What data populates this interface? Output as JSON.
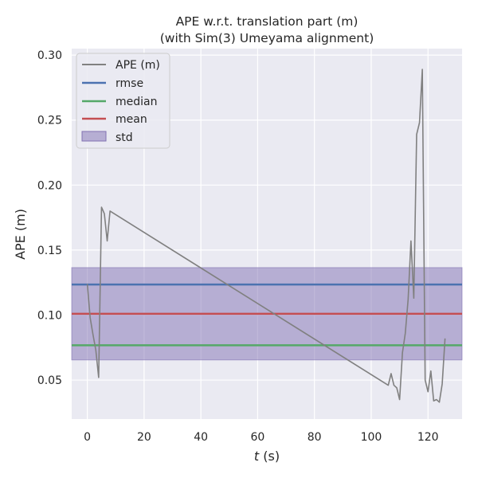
{
  "chart_data": {
    "type": "line",
    "title": "APE w.r.t. translation part (m)",
    "subtitle": "(with Sim(3) Umeyama alignment)",
    "xlabel_var": "t",
    "xlabel_unit": " (s)",
    "ylabel": "APE (m)",
    "xlim": [
      -5.5,
      132
    ],
    "ylim": [
      0.02,
      0.305
    ],
    "x_ticks": [
      0,
      20,
      40,
      60,
      80,
      100,
      120
    ],
    "y_ticks": [
      0.05,
      0.1,
      0.15,
      0.2,
      0.25,
      0.3
    ],
    "x_tick_labels": [
      "0",
      "20",
      "40",
      "60",
      "80",
      "100",
      "120"
    ],
    "y_tick_labels": [
      "0.05",
      "0.10",
      "0.15",
      "0.20",
      "0.25",
      "0.30"
    ],
    "grid": true,
    "legend_position": "top-left",
    "series": [
      {
        "name": "APE (m)",
        "color": "#808080",
        "x": [
          0,
          1,
          2,
          3,
          4,
          5,
          6,
          7,
          8,
          106,
          107,
          108,
          109,
          110,
          111,
          112,
          113,
          114,
          115,
          116,
          117,
          118,
          119,
          120,
          121,
          122,
          123,
          124,
          125,
          126
        ],
        "y": [
          0.124,
          0.098,
          0.085,
          0.073,
          0.052,
          0.183,
          0.178,
          0.157,
          0.18,
          0.046,
          0.055,
          0.046,
          0.044,
          0.035,
          0.071,
          0.086,
          0.112,
          0.157,
          0.113,
          0.239,
          0.248,
          0.289,
          0.05,
          0.041,
          0.057,
          0.034,
          0.035,
          0.033,
          0.047,
          0.082
        ]
      }
    ],
    "reference_lines": [
      {
        "name": "rmse",
        "value": 0.1235,
        "color": "#4c72b0"
      },
      {
        "name": "median",
        "value": 0.0768,
        "color": "#55a868"
      },
      {
        "name": "mean",
        "value": 0.101,
        "color": "#c44e52"
      }
    ],
    "std_band": {
      "name": "std",
      "lower": 0.0655,
      "upper": 0.1365,
      "color": "#8172b3"
    },
    "colors": {
      "plot_background": "#eaeaf2",
      "grid": "#ffffff"
    }
  }
}
